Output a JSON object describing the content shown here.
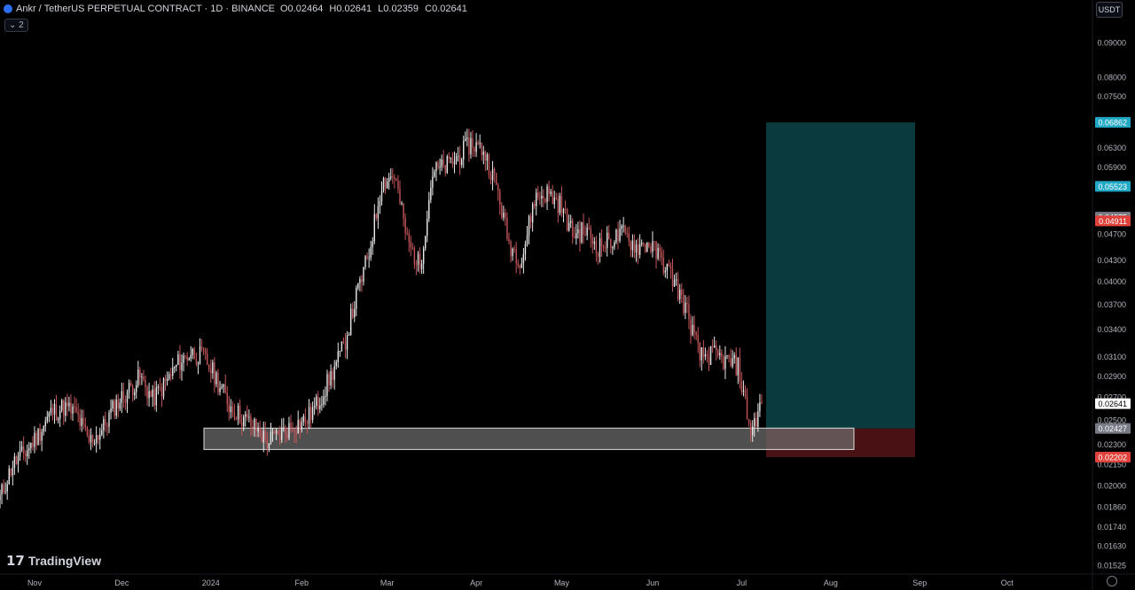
{
  "header": {
    "title": "Ankr / TetherUS PERPETUAL CONTRACT · 1D · BINANCE",
    "ohlc": [
      {
        "k": "O",
        "v": "0.02464"
      },
      {
        "k": "H",
        "v": "0.02641"
      },
      {
        "k": "L",
        "v": "0.02359"
      },
      {
        "k": "C",
        "v": "0.02641"
      }
    ],
    "collapse_label": "⌄ 2",
    "currency": "USDT"
  },
  "watermark": {
    "brand": "TradingView",
    "mark": "17"
  },
  "colors": {
    "bg": "#000000",
    "up": "#e8e8e8",
    "down": "#c2555a",
    "target": "#0a3a3d",
    "stop": "#4a1114",
    "zone_fill": "#6d6d6d",
    "zone_border": "#e0e0e0",
    "accent_cyan": "#22a9c5",
    "accent_red": "#e0423b"
  },
  "chart_data": {
    "type": "candlestick",
    "title": "Ankr / TetherUS PERPETUAL CONTRACT · 1D · BINANCE",
    "y_axis": {
      "scale": "log",
      "ylim": [
        0.0148,
        0.1
      ],
      "ticks": [
        "0.09000",
        "0.08000",
        "0.07500",
        "0.06300",
        "0.05900",
        "0.04700",
        "0.04300",
        "0.04000",
        "0.03700",
        "0.03400",
        "0.03100",
        "0.02900",
        "0.02700",
        "0.02500",
        "0.02300",
        "0.02150",
        "0.02000",
        "0.01860",
        "0.01740",
        "0.01630",
        "0.01525"
      ]
    },
    "x_axis": {
      "ticks": [
        "Nov",
        "Dec",
        "2024",
        "Feb",
        "Mar",
        "Apr",
        "May",
        "Jun",
        "Jul",
        "Aug",
        "Sep",
        "Oct"
      ]
    },
    "price_labels": [
      {
        "value": 0.06862,
        "label": "0.06862",
        "color": "#22a9c5"
      },
      {
        "value": 0.05523,
        "label": "0.05523",
        "color": "#22a9c5"
      },
      {
        "value": 0.04975,
        "label": "0.04975",
        "color": "#787b86"
      },
      {
        "value": 0.04911,
        "label": "0.04911",
        "color": "#e0423b"
      },
      {
        "value": 0.02641,
        "label": "0.02641",
        "color": "#ffffff"
      },
      {
        "value": 0.02427,
        "label": "0.02427",
        "color": "#787b86"
      },
      {
        "value": 0.02202,
        "label": "0.02202",
        "color": "#e0423b"
      }
    ],
    "position": {
      "entry": 0.02427,
      "target": 0.06862,
      "stop": 0.02202
    },
    "zone": {
      "top": 0.0243,
      "bottom": 0.0226
    },
    "close_path": [
      [
        0,
        0.0192
      ],
      [
        7,
        0.0215
      ],
      [
        14,
        0.0224
      ],
      [
        21,
        0.0238
      ],
      [
        28,
        0.0256
      ],
      [
        35,
        0.0261
      ],
      [
        42,
        0.0255
      ],
      [
        49,
        0.0232
      ],
      [
        56,
        0.0241
      ],
      [
        63,
        0.0262
      ],
      [
        70,
        0.0275
      ],
      [
        77,
        0.0289
      ],
      [
        84,
        0.0268
      ],
      [
        91,
        0.0283
      ],
      [
        98,
        0.0303
      ],
      [
        105,
        0.0314
      ],
      [
        112,
        0.0309
      ],
      [
        119,
        0.0288
      ],
      [
        126,
        0.0263
      ],
      [
        133,
        0.0252
      ],
      [
        140,
        0.0244
      ],
      [
        147,
        0.0232
      ],
      [
        154,
        0.0238
      ],
      [
        161,
        0.0245
      ],
      [
        168,
        0.0249
      ],
      [
        175,
        0.0265
      ],
      [
        182,
        0.029
      ],
      [
        189,
        0.032
      ],
      [
        196,
        0.038
      ],
      [
        203,
        0.044
      ],
      [
        210,
        0.056
      ],
      [
        217,
        0.0575
      ],
      [
        224,
        0.046
      ],
      [
        231,
        0.042
      ],
      [
        238,
        0.058
      ],
      [
        245,
        0.059
      ],
      [
        252,
        0.061
      ],
      [
        259,
        0.064
      ],
      [
        266,
        0.0625
      ],
      [
        273,
        0.0555
      ],
      [
        280,
        0.0455
      ],
      [
        287,
        0.043
      ],
      [
        294,
        0.053
      ],
      [
        301,
        0.054
      ],
      [
        308,
        0.052
      ],
      [
        315,
        0.047
      ],
      [
        322,
        0.0475
      ],
      [
        329,
        0.045
      ],
      [
        336,
        0.046
      ],
      [
        343,
        0.047
      ],
      [
        350,
        0.045
      ],
      [
        357,
        0.0455
      ],
      [
        364,
        0.043
      ],
      [
        371,
        0.04
      ],
      [
        378,
        0.036
      ],
      [
        385,
        0.031
      ],
      [
        392,
        0.0312
      ],
      [
        399,
        0.0305
      ],
      [
        406,
        0.03
      ],
      [
        413,
        0.024
      ],
      [
        419,
        0.0264
      ]
    ]
  }
}
